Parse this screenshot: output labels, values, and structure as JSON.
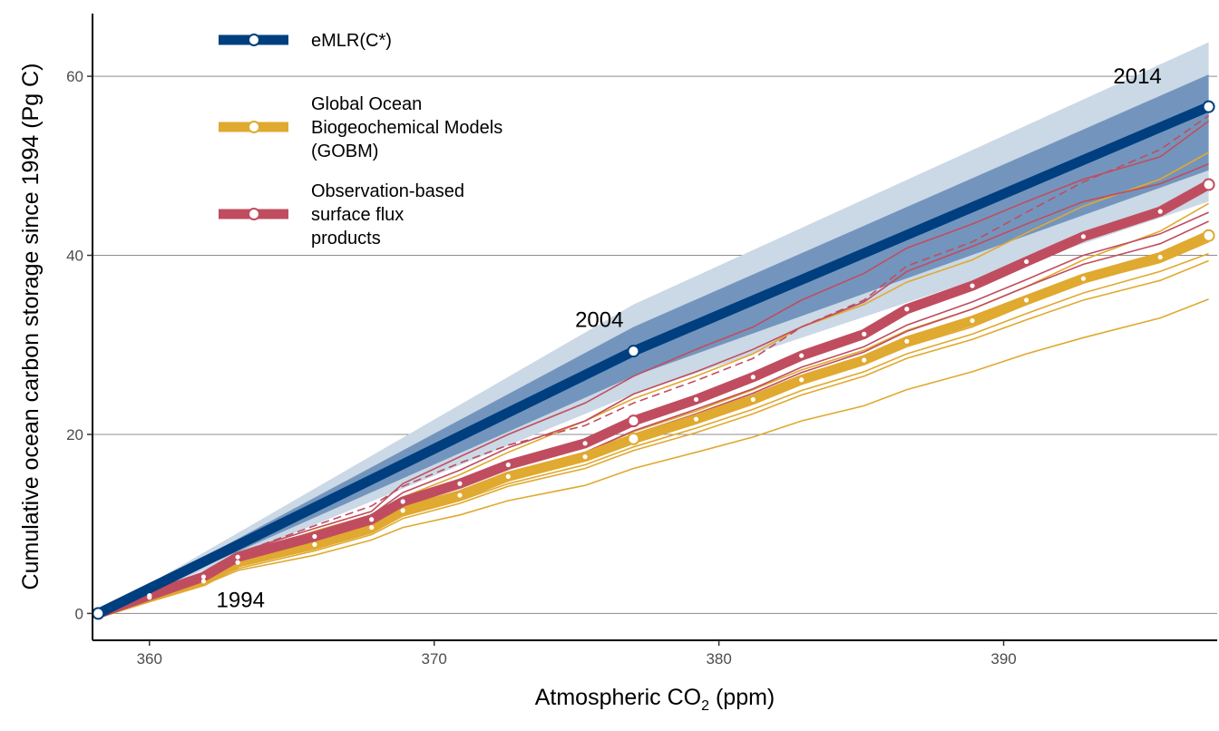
{
  "chart_data": {
    "type": "line",
    "xlabel_main": "Atmospheric CO",
    "xlabel_sub": "2",
    "xlabel_unit": " (ppm)",
    "ylabel": "Cumulative ocean carbon storage since 1994 (Pg C)",
    "xlim": [
      358,
      397.5
    ],
    "ylim": [
      -3,
      67
    ],
    "xticks": [
      360,
      370,
      380,
      390
    ],
    "yticks": [
      0,
      20,
      40,
      60
    ],
    "grid": "horizontal",
    "legend_position": "top-left",
    "colors": {
      "emlr": "#003f7f",
      "emlr_inner": "#7395bd",
      "emlr_outer": "#cbd8e6",
      "gobm": "#e0a92f",
      "obs": "#c04d5f",
      "axis": "#000000",
      "grid": "#8c8c8c"
    },
    "legend": [
      {
        "key": "emlr",
        "lines": [
          "eMLR(C*)"
        ]
      },
      {
        "key": "gobm",
        "lines": [
          "Global Ocean",
          "Biogeochemical Models",
          "(GOBM)"
        ]
      },
      {
        "key": "obs",
        "lines": [
          "Observation-based",
          "surface flux",
          "products"
        ]
      }
    ],
    "year_labels": [
      {
        "label": "1994",
        "x": 363.2,
        "y": 0.7
      },
      {
        "label": "2004",
        "x": 375.8,
        "y": 32.0
      },
      {
        "label": "2014",
        "x": 394.7,
        "y": 59.2
      }
    ],
    "emlr": {
      "name": "eMLR(C*)",
      "points": [
        [
          358.2,
          0
        ],
        [
          377.0,
          29.3
        ],
        [
          397.2,
          56.6
        ]
      ],
      "band_inner": {
        "lower": [
          0,
          26.5,
          49.5
        ],
        "upper": [
          0,
          32.0,
          60.2
        ]
      },
      "band_outer": {
        "lower": [
          0,
          24.5,
          46.0
        ],
        "upper": [
          0,
          34.5,
          63.8
        ]
      }
    },
    "x_years": [
      358.2,
      360.0,
      361.9,
      363.1,
      365.8,
      367.8,
      368.9,
      370.9,
      372.6,
      375.3,
      377.0,
      379.2,
      381.2,
      382.9,
      385.1,
      386.6,
      388.9,
      390.8,
      392.8,
      395.5,
      397.2
    ],
    "obs_mean": {
      "name": "Observation-based surface flux products",
      "values": [
        0,
        2.0,
        4.1,
        6.3,
        8.6,
        10.5,
        12.5,
        14.5,
        16.6,
        19.0,
        21.5,
        23.9,
        26.4,
        28.8,
        31.2,
        34.0,
        36.6,
        39.3,
        42.1,
        44.9,
        47.9
      ]
    },
    "gobm_mean": {
      "name": "Global Ocean Biogeochemical Models (GOBM)",
      "values": [
        0,
        1.8,
        3.6,
        5.7,
        7.7,
        9.6,
        11.5,
        13.2,
        15.3,
        17.5,
        19.5,
        21.7,
        23.9,
        26.1,
        28.3,
        30.4,
        32.7,
        35.0,
        37.4,
        39.8,
        42.2
      ]
    },
    "obs_members": [
      [
        0,
        2.1,
        4.4,
        6.8,
        9.5,
        11.4,
        14.5,
        17.5,
        20.0,
        23.5,
        26.5,
        29.5,
        32.0,
        35.0,
        38.0,
        40.8,
        43.5,
        46.0,
        48.5,
        51.0,
        55.0
      ],
      [
        0,
        2.1,
        4.3,
        6.5,
        9.0,
        11.0,
        13.5,
        16.0,
        18.5,
        21.5,
        24.5,
        27.0,
        29.5,
        32.0,
        34.8,
        38.2,
        41.0,
        43.5,
        46.0,
        48.0,
        50.2
      ],
      [
        0,
        2.0,
        4.1,
        6.3,
        8.4,
        10.3,
        12.5,
        14.5,
        16.6,
        19.0,
        21.5,
        24.0,
        26.5,
        29.0,
        31.5,
        34.0,
        37.0,
        39.5,
        42.0,
        45.0,
        47.8
      ],
      [
        0,
        1.9,
        3.9,
        6.0,
        8.0,
        9.8,
        11.8,
        13.7,
        15.7,
        18.0,
        20.4,
        22.8,
        25.1,
        27.5,
        29.8,
        32.2,
        34.8,
        37.3,
        40.0,
        42.4,
        44.8
      ],
      [
        0,
        1.9,
        3.8,
        5.9,
        7.9,
        9.6,
        11.6,
        13.4,
        15.4,
        17.7,
        20.0,
        22.3,
        24.6,
        26.9,
        29.2,
        31.5,
        34.0,
        36.5,
        39.0,
        41.3,
        43.8
      ]
    ],
    "obs_dashed": [
      0,
      2.1,
      4.4,
      6.7,
      9.8,
      12.0,
      14.2,
      16.8,
      18.8,
      21.0,
      23.5,
      26.0,
      28.5,
      32.0,
      35.0,
      38.8,
      41.5,
      44.8,
      48.2,
      51.8,
      55.6
    ],
    "gobm_members": [
      [
        0,
        2.0,
        4.2,
        6.3,
        9.2,
        11.0,
        13.0,
        15.5,
        18.0,
        21.5,
        24.0,
        26.5,
        29.0,
        32.0,
        34.5,
        37.0,
        39.5,
        42.5,
        45.5,
        48.5,
        51.5
      ],
      [
        0,
        1.9,
        3.8,
        5.8,
        7.8,
        9.6,
        11.7,
        13.6,
        15.7,
        18.0,
        20.3,
        22.6,
        25.0,
        27.2,
        29.4,
        31.6,
        34.0,
        36.5,
        39.5,
        42.7,
        45.8
      ],
      [
        0,
        1.8,
        3.6,
        5.5,
        7.5,
        9.3,
        11.2,
        13.0,
        15.0,
        17.1,
        19.2,
        21.3,
        23.4,
        25.6,
        27.8,
        29.8,
        32.0,
        34.5,
        37.0,
        39.2,
        41.5
      ],
      [
        0,
        1.8,
        3.5,
        5.3,
        7.2,
        9.0,
        10.9,
        12.6,
        14.5,
        16.6,
        18.6,
        20.7,
        22.8,
        24.9,
        27.0,
        29.0,
        31.2,
        33.5,
        35.8,
        38.2,
        40.2
      ],
      [
        0,
        1.7,
        3.4,
        5.0,
        7.0,
        8.8,
        10.6,
        12.3,
        14.2,
        16.2,
        18.2,
        20.2,
        22.3,
        24.4,
        26.5,
        28.5,
        30.6,
        32.8,
        35.0,
        37.2,
        39.4
      ],
      [
        0,
        1.6,
        3.2,
        4.8,
        6.5,
        8.2,
        9.6,
        11.0,
        12.6,
        14.3,
        16.2,
        18.0,
        19.7,
        21.5,
        23.2,
        25.0,
        27.0,
        29.0,
        30.8,
        33.0,
        35.1
      ]
    ]
  }
}
